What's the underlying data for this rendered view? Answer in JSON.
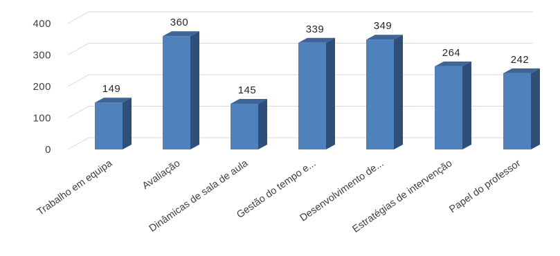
{
  "chart_data": {
    "type": "bar",
    "style": "3d-column",
    "categories": [
      "Trabalho em equipa",
      "Avaliação",
      "Dinâmicas de sala de aula",
      "Gestão do tempo e...",
      "Desenvolvimento de...",
      "Estratégias de intervenção",
      "Papel do professor"
    ],
    "values": [
      149,
      360,
      145,
      339,
      349,
      264,
      242
    ],
    "data_labels": [
      "149",
      "360",
      "145",
      "339",
      "349",
      "264",
      "242"
    ],
    "yticks": [
      "0",
      "100",
      "200",
      "300",
      "400"
    ],
    "ylim": [
      0,
      400
    ],
    "grid": true,
    "legend": false,
    "title": "",
    "xlabel": "",
    "ylabel": "",
    "colors": {
      "bar_front": "#4f81bd",
      "bar_side": "#2f4f78",
      "bar_top": "#3d6598",
      "grid": "#d9d9d9",
      "text": "#404040"
    }
  }
}
